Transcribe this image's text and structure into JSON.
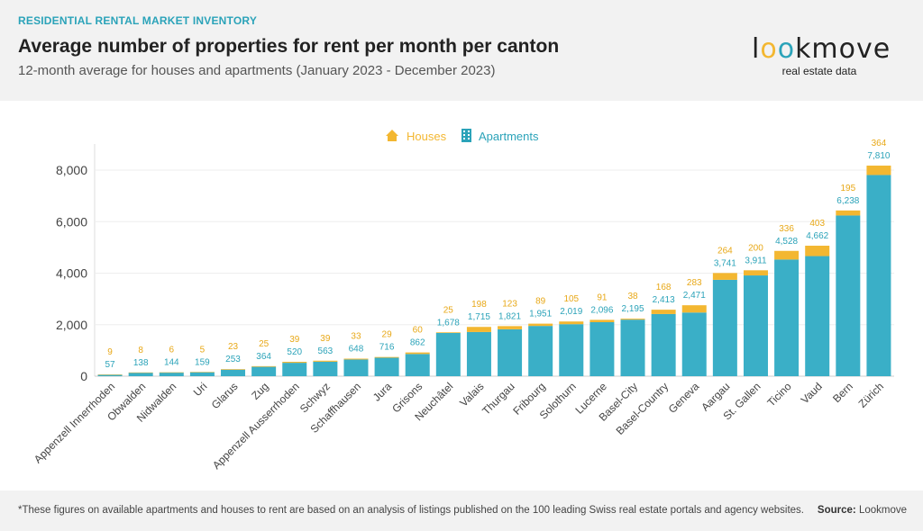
{
  "header": {
    "kicker": "RESIDENTIAL RENTAL MARKET INVENTORY",
    "title": "Average number of properties for rent per month per canton",
    "subtitle": "12-month average for houses and apartments (January 2023 - December 2023)"
  },
  "logo": {
    "word_l": "l",
    "word_o1": "o",
    "word_o2": "o",
    "word_rest": "kmove",
    "tagline": "real estate data"
  },
  "footer": {
    "footnote": "*These figures on available apartments and houses to rent are based on an analysis of listings published on the 100 leading Swiss real estate portals and agency websites.",
    "source_label": "Source:",
    "source_value": "Lookmove"
  },
  "colors": {
    "houses": "#f3b731",
    "apartments": "#3aafc7",
    "accent": "#2ba3b9"
  },
  "chart_data": {
    "type": "bar",
    "stacked": true,
    "categories": [
      "Appenzell Innerrhoden",
      "Obwalden",
      "Nidwalden",
      "Uri",
      "Glarus",
      "Zug",
      "Appenzell Ausserrhoden",
      "Schwyz",
      "Schaffhausen",
      "Jura",
      "Grisons",
      "Neuchâtel",
      "Valais",
      "Thurgau",
      "Fribourg",
      "Solothurn",
      "Lucerne",
      "Basel-City",
      "Basel-Country",
      "Geneva",
      "Aargau",
      "St. Gallen",
      "Ticino",
      "Vaud",
      "Bern",
      "Zürich"
    ],
    "series": [
      {
        "name": "Apartments",
        "color": "#3aafc7",
        "values": [
          57,
          138,
          144,
          159,
          253,
          364,
          520,
          563,
          648,
          716,
          862,
          1678,
          1715,
          1821,
          1951,
          2019,
          2096,
          2195,
          2413,
          2471,
          3741,
          3911,
          4528,
          4662,
          6238,
          7810
        ]
      },
      {
        "name": "Houses",
        "color": "#f3b731",
        "values": [
          9,
          8,
          6,
          5,
          23,
          25,
          39,
          39,
          33,
          29,
          60,
          25,
          198,
          123,
          89,
          105,
          91,
          38,
          168,
          283,
          264,
          200,
          336,
          403,
          195,
          364
        ]
      }
    ],
    "apartment_labels": [
      "57",
      "138",
      "144",
      "159",
      "253",
      "364",
      "520",
      "563",
      "648",
      "716",
      "862",
      "1,678",
      "1,715",
      "1,821",
      "1,951",
      "2,019",
      "2,096",
      "2,195",
      "2,413",
      "2,471",
      "3,741",
      "3,911",
      "4,528",
      "4,662",
      "6,238",
      "7,810"
    ],
    "house_labels": [
      "9",
      "8",
      "6",
      "5",
      "23",
      "25",
      "39",
      "39",
      "33",
      "29",
      "60",
      "25",
      "198",
      "123",
      "89",
      "105",
      "91",
      "38",
      "168",
      "283",
      "264",
      "200",
      "336",
      "403",
      "195",
      "364"
    ],
    "yticks": [
      0,
      2000,
      4000,
      6000,
      8000
    ],
    "ytick_labels": [
      "0",
      "2,000",
      "4,000",
      "6,000",
      "8,000"
    ],
    "ylim": [
      0,
      8700
    ],
    "legend": [
      "Houses",
      "Apartments"
    ],
    "legend_position": "top-center",
    "grid": true
  }
}
